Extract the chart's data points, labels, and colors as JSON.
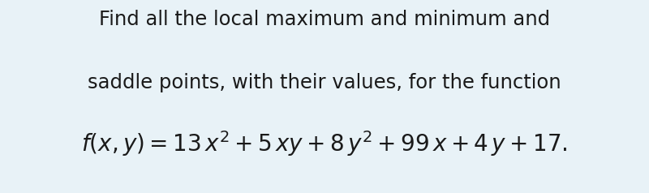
{
  "background_color": "#e8f2f7",
  "line1": "Find all the local maximum and minimum and",
  "line2": "saddle points, with their values, for the function",
  "formula": "$f(x, y) = 13\\,x^2 + 5\\,xy + 8\\,y^2 + 99\\,x + 4\\,y + 17.$",
  "text_color": "#1a1a1a",
  "line_fontsize": 17.5,
  "formula_fontsize": 20,
  "fig_width": 8.0,
  "fig_height": 2.38
}
